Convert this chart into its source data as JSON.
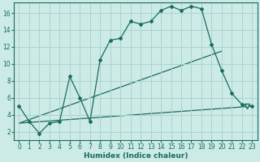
{
  "xlabel": "Humidex (Indice chaleur)",
  "bg_color": "#cceae6",
  "grid_color": "#aad4cf",
  "line_color": "#1a6b60",
  "xlim": [
    -0.5,
    23.5
  ],
  "ylim": [
    1.0,
    17.2
  ],
  "xticks": [
    0,
    1,
    2,
    3,
    4,
    5,
    6,
    7,
    8,
    9,
    10,
    11,
    12,
    13,
    14,
    15,
    16,
    17,
    18,
    19,
    20,
    21,
    22,
    23
  ],
  "yticks": [
    2,
    4,
    6,
    8,
    10,
    12,
    14,
    16
  ],
  "line1_x": [
    0,
    1,
    2,
    3,
    4,
    5,
    6,
    7,
    8,
    9,
    10,
    11,
    12,
    13,
    14,
    15,
    16,
    17,
    18,
    19,
    20,
    21,
    22,
    23
  ],
  "line1_y": [
    5.0,
    3.2,
    1.8,
    3.0,
    3.2,
    8.5,
    6.0,
    3.2,
    10.5,
    12.8,
    13.0,
    15.0,
    14.7,
    15.0,
    16.3,
    16.8,
    16.3,
    16.8,
    16.5,
    12.3,
    9.2,
    6.5,
    5.2,
    5.0
  ],
  "line2_x": [
    0,
    20
  ],
  "line2_y": [
    3.0,
    11.5
  ],
  "line3_x": [
    0,
    23
  ],
  "line3_y": [
    3.0,
    5.0
  ],
  "triangle_x": 22.5,
  "triangle_y": 5.0
}
